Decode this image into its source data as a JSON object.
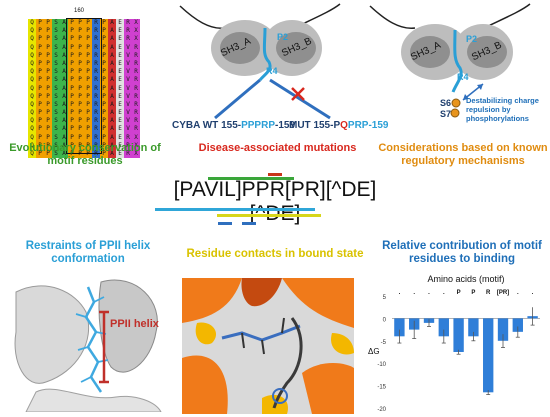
{
  "panel1": {
    "caption": "Evolutionary conservation of motif residues",
    "position_label": "160",
    "alignment_rows": [
      "QPPSAPPPRPAERX",
      "QPPSAPPPRPAERX",
      "QPPSAPPPRPAERX",
      "QPPSAPPPRPAEVR",
      "QPPSAPPPRPAEVR",
      "QPPSAPPPRPAEVR",
      "QPPSAPPPRPAEVR",
      "QPPSAPPPRPAEVR",
      "QPPSAPPPRPAEVR",
      "QPPSAPPPRPAEVR",
      "QPPSAPPPRPAEVR",
      "QPPSAPPPRPAEVR",
      "QPPSAPPPRPAEVR",
      "QPPSAPPPRPAEVR",
      "QPPSAPPPRPAERX",
      "QPPSAPPPRPAERX",
      "QPPSAPPPRPAERX"
    ],
    "column_colors": [
      "#e6e600",
      "#f0a000",
      "#f0a000",
      "#3cb44b",
      "#3cb44b",
      "#f0a000",
      "#f0a000",
      "#f0a000",
      "#3070d0",
      "#f0a000",
      "#d03030",
      "#e0e0e0",
      "#d040d0",
      "#d040d0"
    ]
  },
  "panel2": {
    "domain_a": "SH3_A",
    "domain_b": "SH3_B",
    "p2": "P2",
    "p4": "R4",
    "wt_label": "CYBA WT 155-",
    "wt_motif": "PPPRP",
    "wt_end": "-159",
    "mut_label": "MUT 155-P",
    "mut_red": "Q",
    "mut_rest": "PRP-159",
    "caption": "Disease-associated mutations"
  },
  "panel3": {
    "domain_a": "SH3_A",
    "domain_b": "SH3_B",
    "p2": "P2",
    "p4": "R4",
    "s6": "S6",
    "s7": "S7",
    "annotation": "Destabilizing charge repulsion by phosphorylations",
    "caption": "Considerations based on known regulatory mechanisms"
  },
  "motif": "[PAVIL]PPR[PR][^DE][^DE]",
  "panel4": {
    "caption": "Restraints of PPII helix conformation",
    "helix_label": "PPII helix"
  },
  "panel5": {
    "caption": "Residue contacts in bound state"
  },
  "panel6": {
    "caption": "Relative contribution of motif residues to binding",
    "chart_data": {
      "type": "bar",
      "title": "Amino acids (motif)",
      "ylabel": "ΔG",
      "categories": [
        ".",
        ".",
        ".",
        ".",
        "P",
        "P",
        "R",
        "[PR]",
        ".",
        "."
      ],
      "values": [
        -4,
        -2.5,
        -1,
        -4,
        -7.5,
        -4,
        -16.5,
        -5,
        -3,
        0.5
      ],
      "errors": [
        1.5,
        2,
        0.8,
        1.5,
        0.5,
        1,
        0.5,
        1.5,
        1.2,
        2
      ],
      "ylim": [
        -20,
        5
      ],
      "yticks": [
        5,
        0,
        -5,
        -10,
        -15,
        -20
      ],
      "bar_color": "#2f7ed8"
    }
  }
}
